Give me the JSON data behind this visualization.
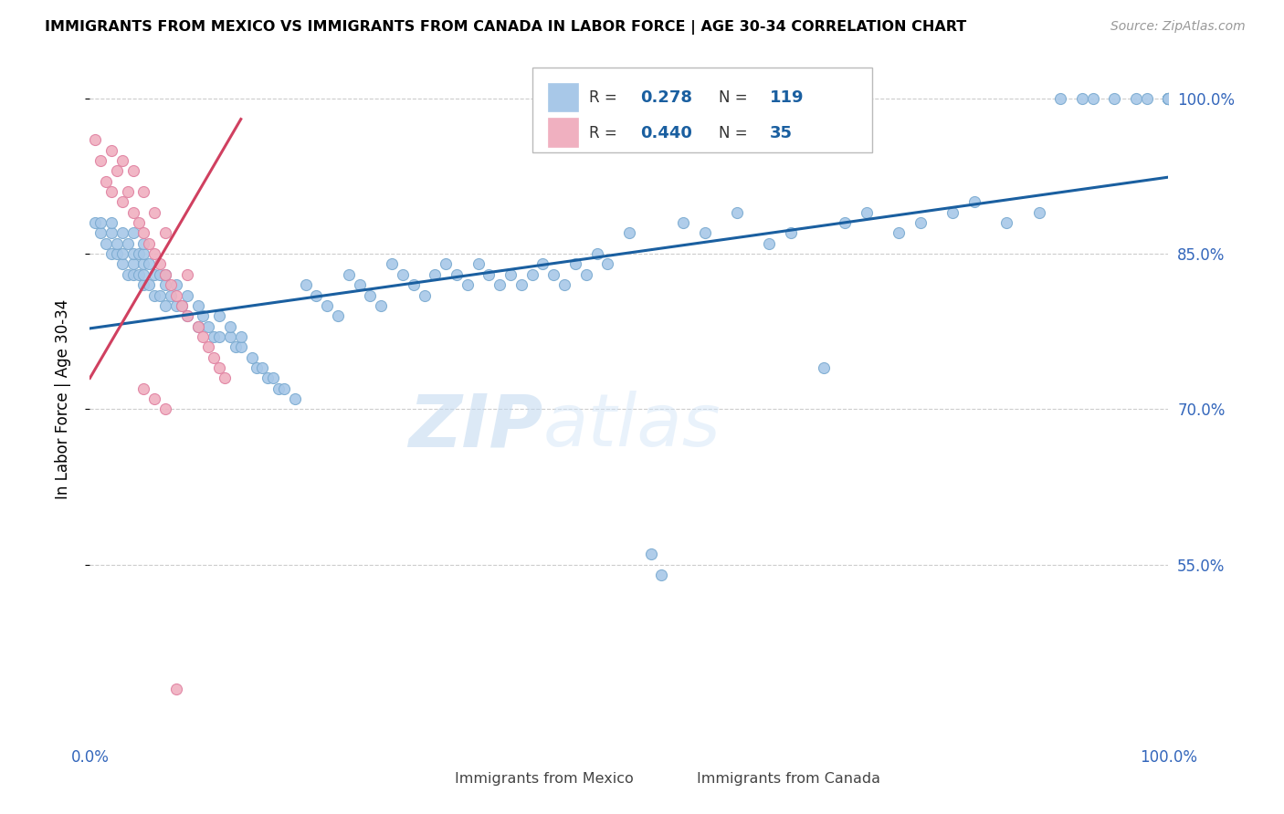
{
  "title": "IMMIGRANTS FROM MEXICO VS IMMIGRANTS FROM CANADA IN LABOR FORCE | AGE 30-34 CORRELATION CHART",
  "source": "Source: ZipAtlas.com",
  "ylabel": "In Labor Force | Age 30-34",
  "xlim": [
    0.0,
    1.0
  ],
  "ylim": [
    0.38,
    1.04
  ],
  "watermark_zip": "ZIP",
  "watermark_atlas": "atlas",
  "mexico_color": "#a8c8e8",
  "canada_color": "#f0b0c0",
  "mexico_edge": "#7aaad0",
  "canada_edge": "#e080a0",
  "mexico_line_color": "#1a5fa0",
  "canada_line_color": "#d04060",
  "legend_r_mexico": "0.278",
  "legend_n_mexico": "119",
  "legend_r_canada": "0.440",
  "legend_n_canada": "35",
  "mexico_x": [
    0.005,
    0.01,
    0.01,
    0.015,
    0.02,
    0.02,
    0.02,
    0.025,
    0.025,
    0.03,
    0.03,
    0.03,
    0.035,
    0.035,
    0.04,
    0.04,
    0.04,
    0.04,
    0.045,
    0.045,
    0.05,
    0.05,
    0.05,
    0.05,
    0.05,
    0.055,
    0.055,
    0.06,
    0.06,
    0.065,
    0.065,
    0.07,
    0.07,
    0.07,
    0.075,
    0.08,
    0.08,
    0.085,
    0.09,
    0.09,
    0.1,
    0.1,
    0.105,
    0.11,
    0.115,
    0.12,
    0.12,
    0.13,
    0.13,
    0.135,
    0.14,
    0.14,
    0.15,
    0.155,
    0.16,
    0.165,
    0.17,
    0.175,
    0.18,
    0.19,
    0.2,
    0.21,
    0.22,
    0.23,
    0.24,
    0.25,
    0.26,
    0.27,
    0.28,
    0.29,
    0.3,
    0.31,
    0.32,
    0.33,
    0.34,
    0.35,
    0.36,
    0.37,
    0.38,
    0.39,
    0.4,
    0.41,
    0.42,
    0.43,
    0.44,
    0.45,
    0.46,
    0.47,
    0.48,
    0.5,
    0.52,
    0.53,
    0.55,
    0.57,
    0.6,
    0.63,
    0.65,
    0.68,
    0.7,
    0.72,
    0.75,
    0.77,
    0.8,
    0.82,
    0.85,
    0.88,
    0.9,
    0.92,
    0.93,
    0.95,
    0.97,
    0.98,
    1.0,
    1.0,
    1.0,
    1.0,
    1.0,
    1.0,
    1.0
  ],
  "mexico_y": [
    0.88,
    0.87,
    0.88,
    0.86,
    0.85,
    0.87,
    0.88,
    0.85,
    0.86,
    0.84,
    0.85,
    0.87,
    0.83,
    0.86,
    0.83,
    0.84,
    0.85,
    0.87,
    0.83,
    0.85,
    0.82,
    0.83,
    0.84,
    0.85,
    0.86,
    0.82,
    0.84,
    0.81,
    0.83,
    0.81,
    0.83,
    0.8,
    0.82,
    0.83,
    0.81,
    0.8,
    0.82,
    0.8,
    0.79,
    0.81,
    0.78,
    0.8,
    0.79,
    0.78,
    0.77,
    0.77,
    0.79,
    0.77,
    0.78,
    0.76,
    0.76,
    0.77,
    0.75,
    0.74,
    0.74,
    0.73,
    0.73,
    0.72,
    0.72,
    0.71,
    0.82,
    0.81,
    0.8,
    0.79,
    0.83,
    0.82,
    0.81,
    0.8,
    0.84,
    0.83,
    0.82,
    0.81,
    0.83,
    0.84,
    0.83,
    0.82,
    0.84,
    0.83,
    0.82,
    0.83,
    0.82,
    0.83,
    0.84,
    0.83,
    0.82,
    0.84,
    0.83,
    0.85,
    0.84,
    0.87,
    0.56,
    0.54,
    0.88,
    0.87,
    0.89,
    0.86,
    0.87,
    0.74,
    0.88,
    0.89,
    0.87,
    0.88,
    0.89,
    0.9,
    0.88,
    0.89,
    1.0,
    1.0,
    1.0,
    1.0,
    1.0,
    1.0,
    1.0,
    1.0,
    1.0,
    1.0,
    1.0,
    1.0,
    1.0
  ],
  "canada_x": [
    0.005,
    0.01,
    0.015,
    0.02,
    0.02,
    0.025,
    0.03,
    0.03,
    0.035,
    0.04,
    0.04,
    0.045,
    0.05,
    0.05,
    0.055,
    0.06,
    0.06,
    0.065,
    0.07,
    0.07,
    0.075,
    0.08,
    0.085,
    0.09,
    0.09,
    0.1,
    0.105,
    0.11,
    0.115,
    0.12,
    0.125,
    0.08,
    0.05,
    0.06,
    0.07
  ],
  "canada_y": [
    0.96,
    0.94,
    0.92,
    0.91,
    0.95,
    0.93,
    0.9,
    0.94,
    0.91,
    0.89,
    0.93,
    0.88,
    0.87,
    0.91,
    0.86,
    0.85,
    0.89,
    0.84,
    0.83,
    0.87,
    0.82,
    0.81,
    0.8,
    0.79,
    0.83,
    0.78,
    0.77,
    0.76,
    0.75,
    0.74,
    0.73,
    0.43,
    0.72,
    0.71,
    0.7
  ],
  "mexico_trend_x": [
    0.0,
    1.0
  ],
  "mexico_trend_y": [
    0.778,
    0.924
  ],
  "canada_trend_x": [
    0.0,
    0.14
  ],
  "canada_trend_y": [
    0.73,
    0.98
  ]
}
